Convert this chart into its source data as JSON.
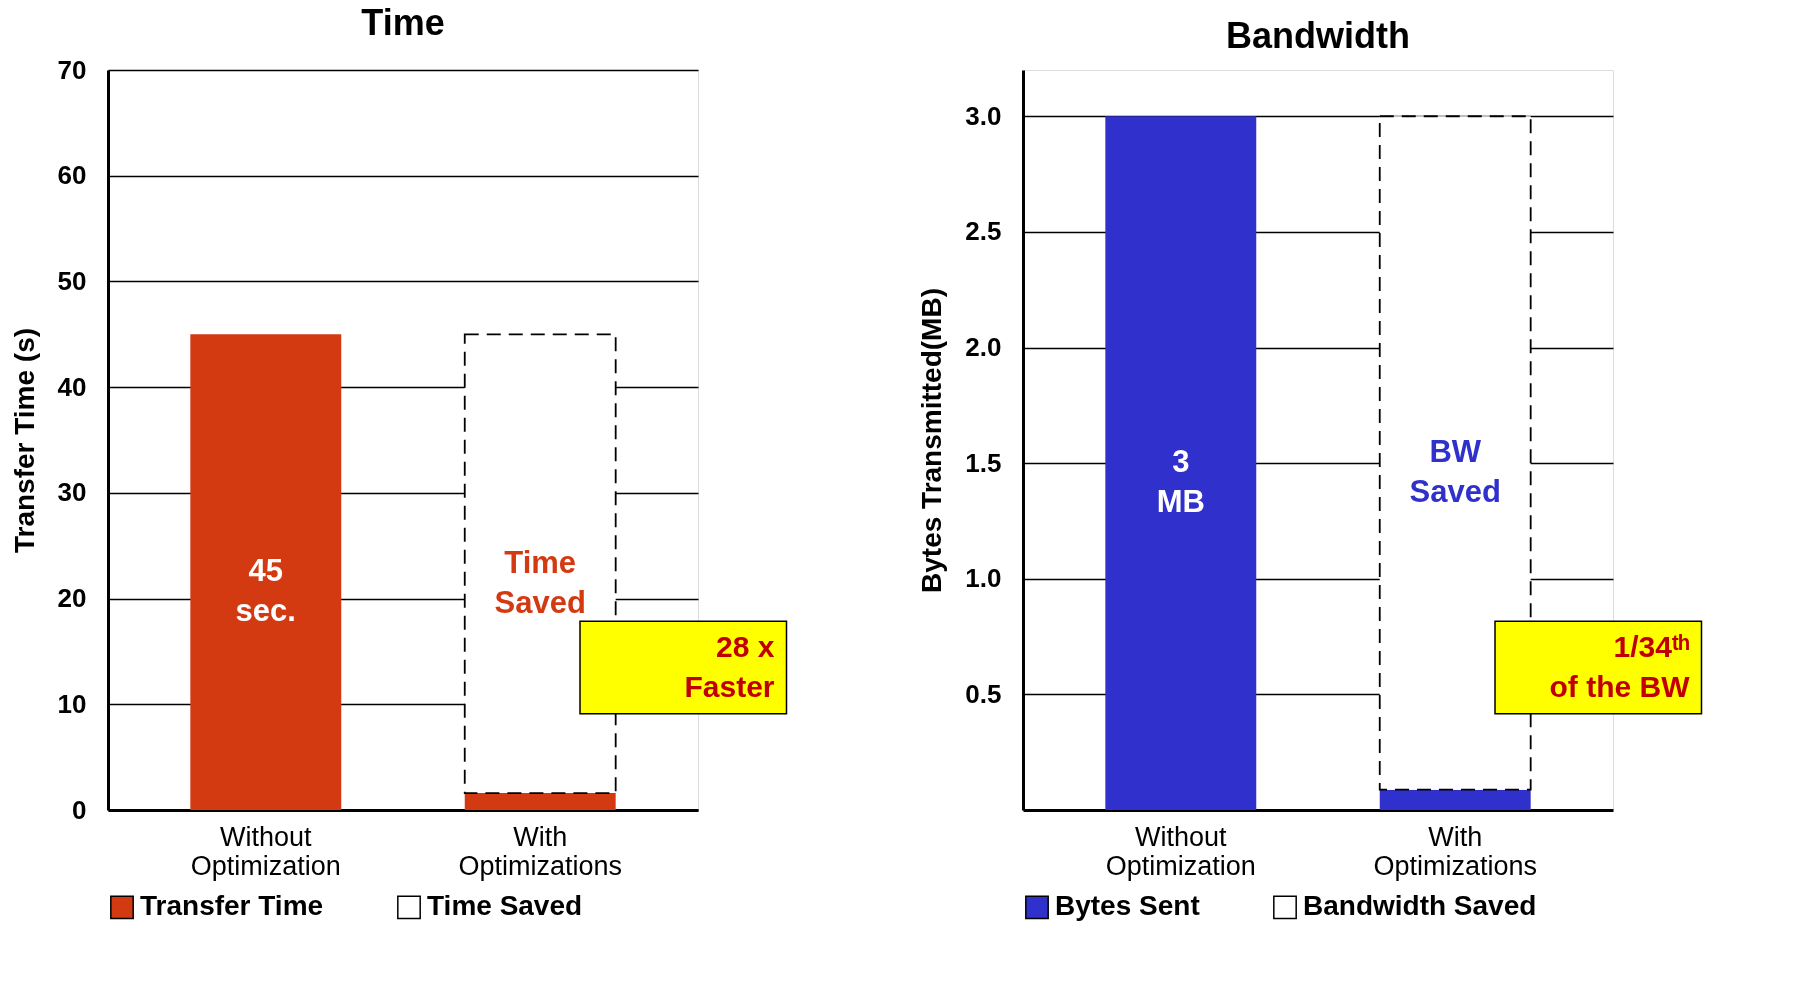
{
  "chart_data": [
    {
      "type": "bar",
      "title": "Time",
      "ylabel": "Transfer Time (s)",
      "categories": [
        "Without Optimization",
        "With Optimizations"
      ],
      "stacked": true,
      "ylim": [
        0,
        70
      ],
      "yticks": [
        0,
        10,
        20,
        30,
        40,
        50,
        60,
        70
      ],
      "grid": "y",
      "legend": "bottom",
      "series": [
        {
          "name": "Transfer Time",
          "color": "#d33a12",
          "values": [
            45,
            1.6
          ],
          "value_labels": [
            "45\nsec.",
            null
          ]
        },
        {
          "name": "Time Saved",
          "color": "#ffffff",
          "line_style": "dashed",
          "values": [
            null,
            43.4
          ],
          "value_labels": [
            null,
            "Time\nSaved"
          ]
        }
      ],
      "annotations": [
        "28 x\nFaster"
      ]
    },
    {
      "type": "bar",
      "title": "Bandwidth",
      "ylabel": "Bytes Transmitted(MB)",
      "categories": [
        "Without Optimization",
        "With Optimizations"
      ],
      "stacked": true,
      "ylim": [
        0,
        3.2
      ],
      "yticks": [
        0.5,
        {
          "value": 1,
          "label": "1.0"
        },
        1.5,
        {
          "value": 2,
          "label": "2.0"
        },
        2.5,
        {
          "value": 3,
          "label": "3.0"
        }
      ],
      "grid": "y",
      "legend": "bottom",
      "series": [
        {
          "name": "Bytes Sent",
          "color": "#3030cc",
          "values": [
            3,
            0.088
          ],
          "value_labels": [
            "3\nMB",
            null
          ]
        },
        {
          "name": "Bandwidth Saved",
          "color": "#ffffff",
          "line_style": "dashed",
          "values": [
            null,
            2.912
          ],
          "value_labels": [
            null,
            "BW\nSaved"
          ]
        }
      ],
      "annotations": [
        "1/34ᵗʰ\nof the BW"
      ]
    }
  ]
}
